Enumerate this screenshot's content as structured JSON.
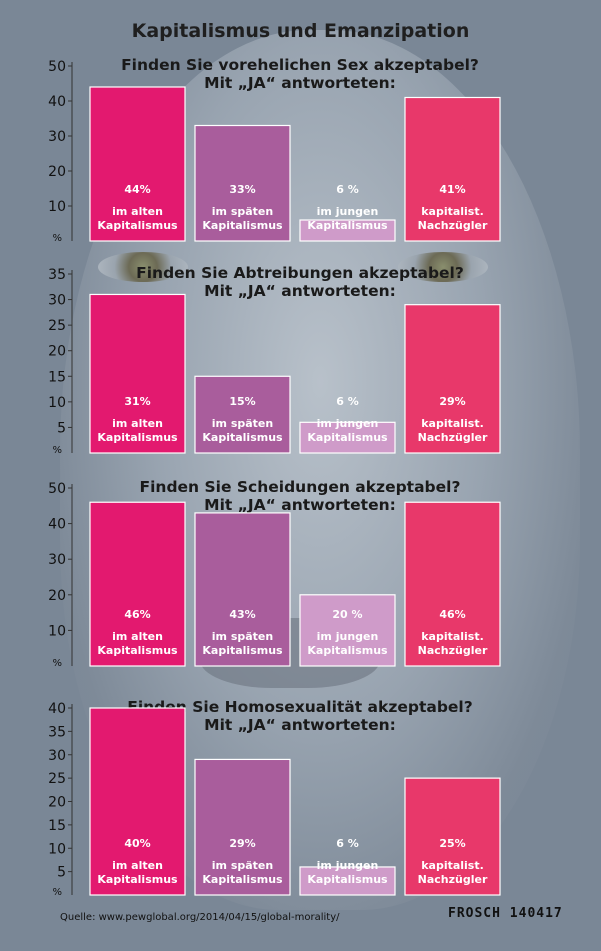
{
  "title": "Kapitalismus und Emanzipation",
  "source": "Quelle: www.pewglobal.org/2014/04/15/global-morality/",
  "signature": "FROSCH 140417",
  "colors": {
    "im alten Kapitalismus": "#e3196f",
    "im späten Kapitalismus": "#a95d9c",
    "im jungen Kapitalismus": "#cf9bc9",
    "kapitalist. Nachzügler": "#e8386a"
  },
  "chart_data": [
    {
      "type": "bar",
      "title": [
        "Finden Sie vorehelichen Sex akzeptabel?",
        "Mit „JA“ antworteten:"
      ],
      "unit_label": "%",
      "yticks": [
        10,
        20,
        30,
        40,
        50
      ],
      "ylim": [
        0,
        50
      ],
      "categories": [
        [
          "im alten",
          "Kapitalismus"
        ],
        [
          "im späten",
          "Kapitalismus"
        ],
        [
          "im jungen",
          "Kapitalismus"
        ],
        [
          "kapitalist.",
          "Nachzügler"
        ]
      ],
      "values": [
        44,
        33,
        6,
        41
      ],
      "value_labels": [
        "44%",
        "33%",
        "6 %",
        "41%"
      ]
    },
    {
      "type": "bar",
      "title": [
        "Finden Sie Abtreibungen akzeptabel?",
        "Mit „JA“ antworteten:"
      ],
      "unit_label": "%",
      "yticks": [
        5,
        10,
        15,
        20,
        25,
        30,
        35
      ],
      "ylim": [
        0,
        35
      ],
      "categories": [
        [
          "im alten",
          "Kapitalismus"
        ],
        [
          "im späten",
          "Kapitalismus"
        ],
        [
          "im jungen",
          "Kapitalismus"
        ],
        [
          "kapitalist.",
          "Nachzügler"
        ]
      ],
      "values": [
        31,
        15,
        6,
        29
      ],
      "value_labels": [
        "31%",
        "15%",
        "6 %",
        "29%"
      ]
    },
    {
      "type": "bar",
      "title": [
        "Finden Sie Scheidungen akzeptabel?",
        "Mit „JA“ antworteten:"
      ],
      "unit_label": "%",
      "yticks": [
        10,
        20,
        30,
        40,
        50
      ],
      "ylim": [
        0,
        50
      ],
      "categories": [
        [
          "im alten",
          "Kapitalismus"
        ],
        [
          "im späten",
          "Kapitalismus"
        ],
        [
          "im jungen",
          "Kapitalismus"
        ],
        [
          "kapitalist.",
          "Nachzügler"
        ]
      ],
      "values": [
        46,
        43,
        20,
        46
      ],
      "value_labels": [
        "46%",
        "43%",
        "20 %",
        "46%"
      ]
    },
    {
      "type": "bar",
      "title": [
        "Finden Sie Homosexualität akzeptabel?",
        "Mit „JA“ antworteten:"
      ],
      "unit_label": "%",
      "yticks": [
        5,
        10,
        15,
        20,
        25,
        30,
        35,
        40
      ],
      "ylim": [
        0,
        40
      ],
      "categories": [
        [
          "im alten",
          "Kapitalismus"
        ],
        [
          "im späten",
          "Kapitalismus"
        ],
        [
          "im jungen",
          "Kapitalismus"
        ],
        [
          "kapitalist.",
          "Nachzügler"
        ]
      ],
      "values": [
        40,
        29,
        6,
        25
      ],
      "value_labels": [
        "40%",
        "29%",
        "6 %",
        "25%"
      ]
    }
  ]
}
